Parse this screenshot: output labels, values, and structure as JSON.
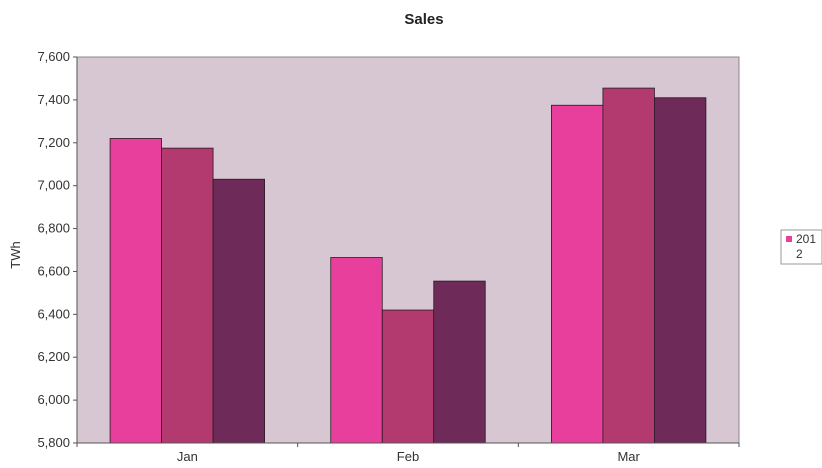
{
  "chart_data": {
    "type": "bar",
    "title": "Sales",
    "xlabel": "",
    "ylabel": "TWh",
    "categories": [
      "Jan",
      "Feb",
      "Mar"
    ],
    "series": [
      {
        "name": "201",
        "color": "#e83e9c",
        "values": [
          7220,
          6665,
          7375
        ]
      },
      {
        "name": "",
        "color": "#b23a6f",
        "values": [
          7175,
          6420,
          7455
        ]
      },
      {
        "name": "",
        "color": "#6e2a58",
        "values": [
          7030,
          6555,
          7410
        ]
      }
    ],
    "ylim": [
      5800,
      7600
    ],
    "yticks": [
      5800,
      6000,
      6200,
      6400,
      6600,
      6800,
      7000,
      7200,
      7400,
      7600
    ],
    "ytick_labels": [
      "5,800",
      "6,000",
      "6,200",
      "6,400",
      "6,600",
      "6,800",
      "7,000",
      "7,200",
      "7,400",
      "7,600"
    ],
    "grid": false,
    "legend": {
      "position": "right",
      "entries": [
        "201",
        "2"
      ]
    },
    "colors": {
      "plot_background": "#d6c7d3",
      "page_background": "#ffffff"
    }
  }
}
